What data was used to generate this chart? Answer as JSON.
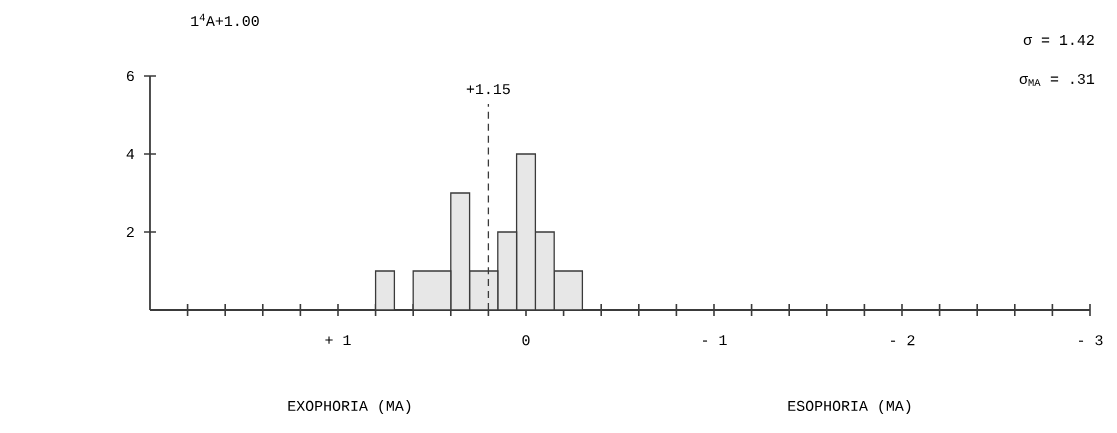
{
  "chart_data": {
    "type": "histogram",
    "title": "1$^{4}$A+1.00",
    "xlabel": "EXOPHORIA (MA)",
    "annotations": [
      "ESOPHORIA (MA)",
      "σ = 1.42",
      "σ$_{MA}$ = .31",
      {
        "text": "+1.15",
        "x": 0.2,
        "y": 5.4
      }
    ],
    "bins": [
      -0.3,
      -0.15,
      -0.05,
      0.05,
      0.15,
      0.3,
      0.4,
      0.6,
      0.7,
      0.8
    ],
    "values": [
      1,
      2,
      4,
      2,
      1,
      3,
      1,
      0,
      1
    ],
    "color": "#3a3a3a",
    "xlim": [
      2,
      -3
    ],
    "ylim": [
      0,
      6
    ],
    "xticks": [
      {
        "value": 1.8,
        "label": null
      },
      {
        "value": 1.6,
        "label": null
      },
      {
        "value": 1.4,
        "label": null
      },
      {
        "value": 1.2,
        "label": null
      },
      {
        "value": 1,
        "label": "+ 1"
      },
      {
        "value": 0.8,
        "label": null
      },
      {
        "value": 0.6,
        "label": null
      },
      {
        "value": 0.4,
        "label": null
      },
      {
        "value": 0.2,
        "label": null
      },
      0,
      {
        "value": -0.2,
        "label": null
      },
      {
        "value": -0.4,
        "label": null
      },
      {
        "value": -0.6,
        "label": null
      },
      {
        "value": -0.8,
        "label": null
      },
      {
        "value": -1,
        "label": "- 1"
      },
      {
        "value": -1.2,
        "label": null
      },
      {
        "value": -1.4,
        "label": null
      },
      {
        "value": -1.6,
        "label": null
      },
      {
        "value": -1.8,
        "label": null
      },
      {
        "value": -2,
        "label": "- 2"
      },
      {
        "value": -2.2,
        "label": null
      },
      {
        "value": -2.4,
        "label": null
      },
      {
        "value": -2.6,
        "label": null
      },
      {
        "value": -2.8,
        "label": null
      },
      {
        "value": -3,
        "label": "- 3"
      }
    ],
    "yticks": [
      2,
      4,
      6
    ],
    "ref_lines": [
      {
        "axis": "x",
        "value": 0.2,
        "line_style": "dashed"
      }
    ]
  }
}
